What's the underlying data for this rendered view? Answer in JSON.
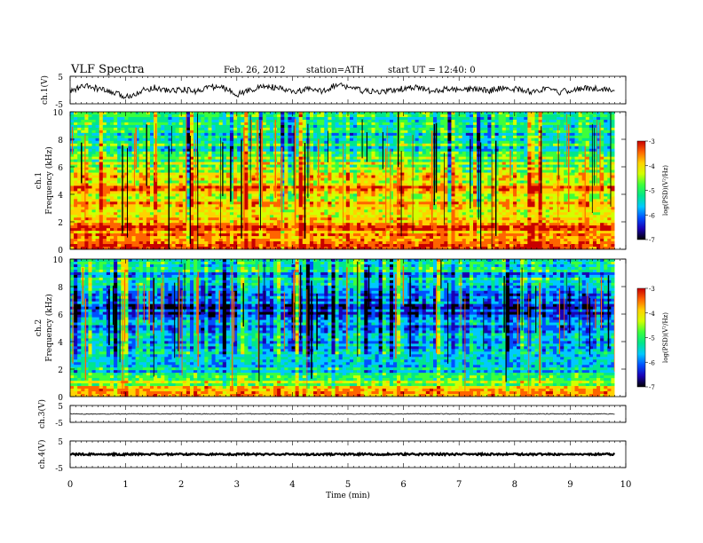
{
  "header": {
    "title": "VLF  Spectra",
    "date": "Feb. 26, 2012",
    "station": "station=ATH",
    "start": "start  UT  =    12:40: 0"
  },
  "colors": {
    "colormap": [
      "#000000",
      "#1a00b4",
      "#0050ff",
      "#00c8ff",
      "#00e68c",
      "#3cff3c",
      "#d2ff00",
      "#ffd200",
      "#ff6400",
      "#c80000"
    ]
  },
  "chart_data": [
    {
      "type": "line",
      "panel": "ch1-waveform",
      "ylabel": "ch.1(V)",
      "ylim": [
        -5,
        5
      ],
      "yticks": [
        "5",
        "-5"
      ],
      "x_range_min": [
        0,
        9.8
      ],
      "series": [
        {
          "values": [
            -0.5,
            1.5,
            0.5,
            -1,
            -2.5,
            -0.5,
            1,
            -0.3,
            0.2,
            -0.5,
            1.3,
            0.8,
            -1.5,
            0.2,
            1.5,
            0.5,
            -0.8,
            0.3,
            -0.5,
            1.8,
            1.2,
            -0.4,
            -0.8,
            -0.2,
            0.6,
            0.9,
            -0.7,
            0.4,
            -0.3,
            0.5,
            -0.2,
            0.8,
            0.3,
            -0.6,
            0.4,
            -0.9,
            0.2,
            0.6,
            0.5,
            0.0
          ]
        }
      ]
    },
    {
      "type": "heatmap",
      "panel": "ch1-spectrogram",
      "ylabel": "Frequency  (kHz)",
      "ylim": [
        0,
        10
      ],
      "yticks": [
        "0",
        "2",
        "4",
        "6",
        "8",
        "10"
      ],
      "colorbar": {
        "label": "log(PSD)(V²/Hz)",
        "range": [
          -7,
          -3
        ],
        "ticks": [
          "-3",
          "-4",
          "-5",
          "-6",
          "-7"
        ]
      },
      "band_profile_kHz_to_logPSD": [
        [
          0.2,
          -3.6
        ],
        [
          1,
          -3.6
        ],
        [
          2,
          -3.7
        ],
        [
          3,
          -3.9
        ],
        [
          3.5,
          -4.2
        ],
        [
          4.5,
          -3.7
        ],
        [
          5,
          -4.1
        ],
        [
          5.5,
          -4.5
        ],
        [
          6,
          -4.5
        ],
        [
          7,
          -5.0
        ],
        [
          8,
          -5.2
        ],
        [
          9,
          -4.9
        ],
        [
          10,
          -5.0
        ]
      ]
    },
    {
      "type": "heatmap",
      "panel": "ch2-spectrogram",
      "ylabel": "Frequency  (kHz)",
      "ylim": [
        0,
        10
      ],
      "yticks": [
        "0",
        "2",
        "4",
        "6",
        "8",
        "10"
      ],
      "colorbar": {
        "label": "log(PSD)(V²/Hz)",
        "range": [
          -7,
          -3
        ],
        "ticks": [
          "-3",
          "-4",
          "-5",
          "-6",
          "-7"
        ]
      },
      "band_profile_kHz_to_logPSD": [
        [
          0.2,
          -4.0
        ],
        [
          0.8,
          -4.5
        ],
        [
          1.5,
          -5.3
        ],
        [
          2.5,
          -5.5
        ],
        [
          3.5,
          -5.7
        ],
        [
          4.5,
          -5.8
        ],
        [
          5.5,
          -5.9
        ],
        [
          6.5,
          -6.1
        ],
        [
          7.5,
          -5.6
        ],
        [
          8.5,
          -5.4
        ],
        [
          10,
          -5.5
        ]
      ]
    },
    {
      "type": "line",
      "panel": "ch3-waveform",
      "ylabel": "ch.3(V)",
      "ylim": [
        -5,
        5
      ],
      "yticks": [
        "5",
        "-5"
      ],
      "series": [
        {
          "values": [
            0,
            0,
            0,
            0,
            0,
            0,
            0,
            0,
            0,
            0
          ]
        }
      ]
    },
    {
      "type": "line",
      "panel": "ch4-waveform",
      "ylabel": "ch.4(V)",
      "ylim": [
        -5,
        5
      ],
      "yticks": [
        "5",
        "-5"
      ],
      "series": [
        {
          "values": [
            0,
            0,
            0,
            0,
            0,
            0,
            0,
            0,
            0,
            0
          ]
        }
      ]
    }
  ],
  "x_axis": {
    "label": "Time  (min)",
    "range": [
      0,
      10
    ],
    "ticks": [
      "0",
      "1",
      "2",
      "3",
      "4",
      "5",
      "6",
      "7",
      "8",
      "9",
      "10"
    ]
  },
  "panel_labels": {
    "ch1_spec": "ch.1",
    "ch2_spec": "ch.2"
  }
}
